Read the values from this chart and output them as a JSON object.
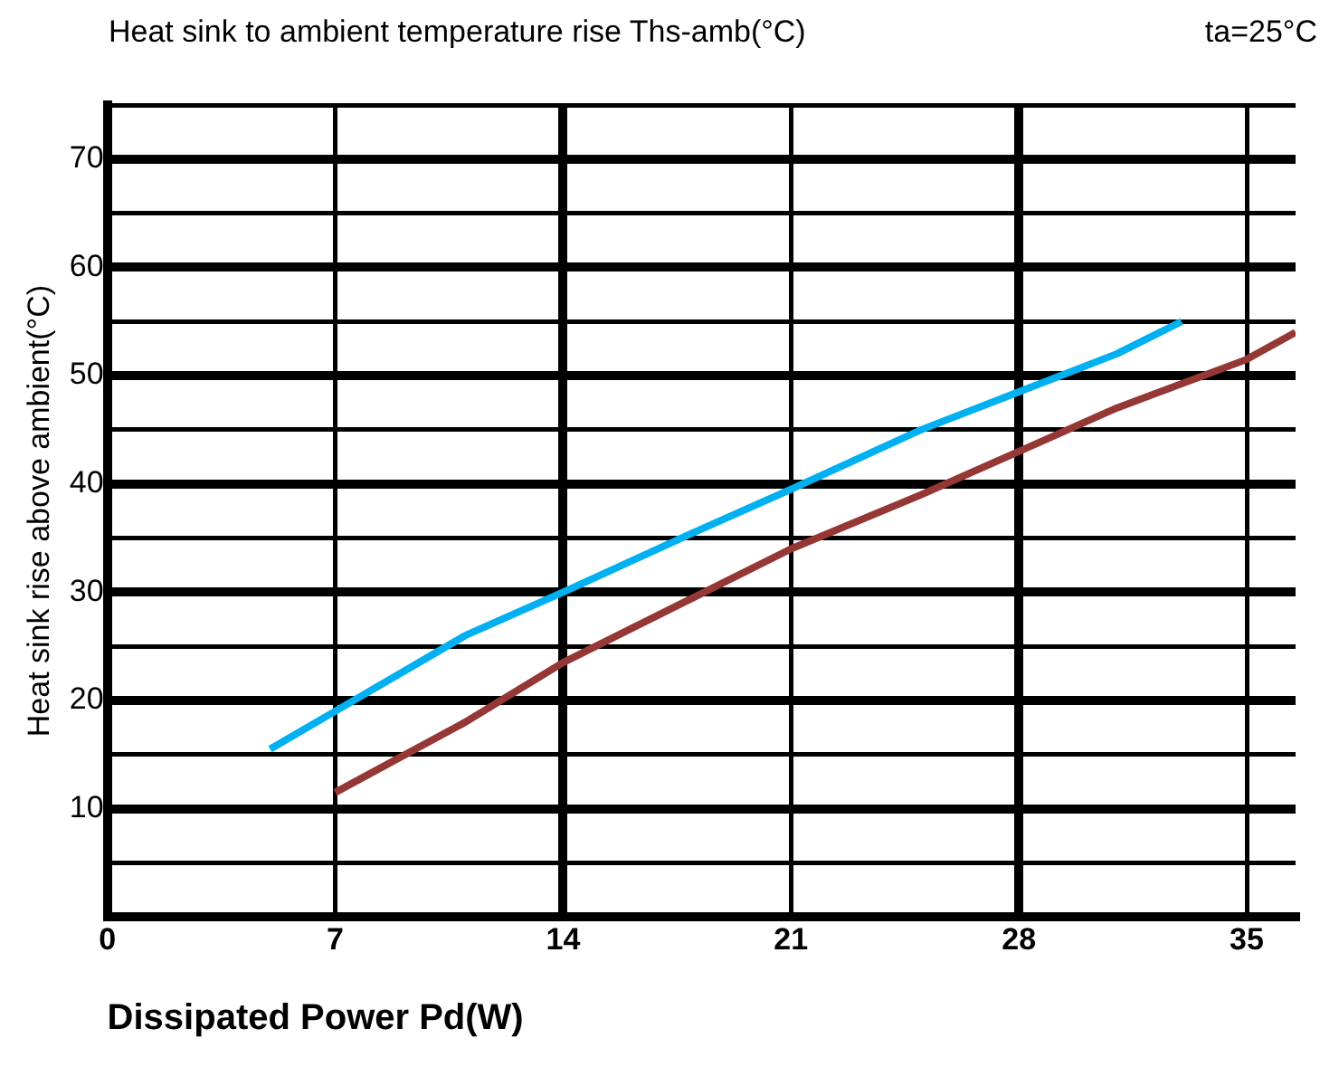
{
  "chart_data": {
    "type": "line",
    "title": "Heat sink to ambient temperature rise Ths-amb(°C)",
    "xlabel": "Dissipated Power Pd(W)",
    "ylabel": "Heat sink rise above ambient(°C)",
    "annotations": [
      "ta=25°C"
    ],
    "xlim": [
      0,
      36.5
    ],
    "xticks": [
      0,
      7,
      14,
      21,
      28,
      35
    ],
    "ylim": [
      0,
      75
    ],
    "yticks": [
      {
        "value": 0,
        "label": null
      },
      {
        "value": 5,
        "label": null
      },
      10,
      {
        "value": 15,
        "label": null
      },
      20,
      {
        "value": 25,
        "label": null
      },
      30,
      {
        "value": 35,
        "label": null
      },
      40,
      {
        "value": 45,
        "label": null
      },
      50,
      {
        "value": 55,
        "label": null
      },
      60,
      {
        "value": 65,
        "label": null
      },
      70,
      {
        "value": 75,
        "label": null
      }
    ],
    "grid": true,
    "legend": false,
    "marker": "none",
    "line_style": "solid",
    "series": [
      {
        "color": "#00b0f0",
        "x": [
          5,
          7,
          11,
          14,
          18,
          21,
          25,
          28,
          31,
          33
        ],
        "values": [
          15.5,
          19,
          26,
          30,
          35.5,
          39.5,
          45,
          48.5,
          52,
          55
        ]
      },
      {
        "color": "#953735",
        "x": [
          7,
          11,
          14,
          18,
          21,
          25,
          28,
          31,
          35,
          36.5
        ],
        "values": [
          11.5,
          18,
          23.5,
          29.5,
          34,
          39,
          43,
          47,
          51.5,
          54
        ]
      }
    ]
  }
}
